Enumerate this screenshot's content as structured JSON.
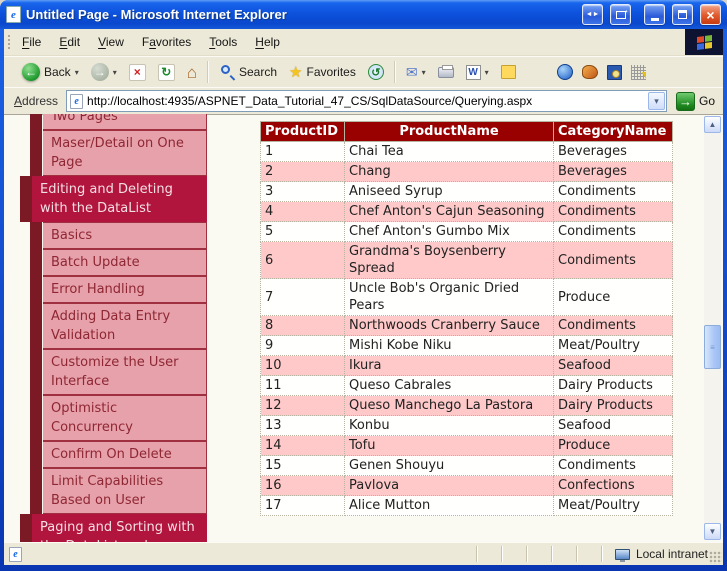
{
  "window": {
    "title": "Untitled Page - Microsoft Internet Explorer"
  },
  "menu": {
    "items": [
      {
        "label": "File",
        "u": 0
      },
      {
        "label": "Edit",
        "u": 0
      },
      {
        "label": "View",
        "u": 0
      },
      {
        "label": "Favorites",
        "u": 1
      },
      {
        "label": "Tools",
        "u": 0
      },
      {
        "label": "Help",
        "u": 0
      }
    ]
  },
  "toolbar": {
    "back_label": "Back",
    "search_label": "Search",
    "favorites_label": "Favorites"
  },
  "address": {
    "label": {
      "label": "Address",
      "u": 0
    },
    "url": "http://localhost:4935/ASPNET_Data_Tutorial_47_CS/SqlDataSource/Querying.aspx",
    "go_label": "Go"
  },
  "sidebar": {
    "items": [
      {
        "id": "two-pages",
        "label": "Two Pages",
        "type": "sub"
      },
      {
        "id": "master-detail-on-one-page",
        "label": "Maser/Detail on One Page",
        "type": "sub"
      },
      {
        "id": "editing-and-deleting-with-the-datalist",
        "label": "Editing and Deleting with the DataList",
        "type": "section"
      },
      {
        "id": "basics",
        "label": "Basics",
        "type": "sub"
      },
      {
        "id": "batch-update",
        "label": "Batch Update",
        "type": "sub"
      },
      {
        "id": "error-handling",
        "label": "Error Handling",
        "type": "sub"
      },
      {
        "id": "adding-data-entry-validation",
        "label": "Adding Data Entry Validation",
        "type": "sub"
      },
      {
        "id": "customize-the-user-interface",
        "label": "Customize the User Interface",
        "type": "sub"
      },
      {
        "id": "optimistic-concurrency",
        "label": "Optimistic Concurrency",
        "type": "sub"
      },
      {
        "id": "confirm-on-delete",
        "label": "Confirm On Delete",
        "type": "sub"
      },
      {
        "id": "limit-capabilities-based-on-user",
        "label": "Limit Capabilities Based on User",
        "type": "sub"
      },
      {
        "id": "paging-and-sorting",
        "label": "Paging and Sorting with the DataList and",
        "type": "section"
      }
    ]
  },
  "table": {
    "headers": [
      "ProductID",
      "ProductName",
      "CategoryName"
    ],
    "rows": [
      [
        "1",
        "Chai Tea",
        "Beverages"
      ],
      [
        "2",
        "Chang",
        "Beverages"
      ],
      [
        "3",
        "Aniseed Syrup",
        "Condiments"
      ],
      [
        "4",
        "Chef Anton's Cajun Seasoning",
        "Condiments"
      ],
      [
        "5",
        "Chef Anton's Gumbo Mix",
        "Condiments"
      ],
      [
        "6",
        "Grandma's Boysenberry Spread",
        "Condiments"
      ],
      [
        "7",
        "Uncle Bob's Organic Dried Pears",
        "Produce"
      ],
      [
        "8",
        "Northwoods Cranberry Sauce",
        "Condiments"
      ],
      [
        "9",
        "Mishi Kobe Niku",
        "Meat/Poultry"
      ],
      [
        "10",
        "Ikura",
        "Seafood"
      ],
      [
        "11",
        "Queso Cabrales",
        "Dairy Products"
      ],
      [
        "12",
        "Queso Manchego La Pastora",
        "Dairy Products"
      ],
      [
        "13",
        "Konbu",
        "Seafood"
      ],
      [
        "14",
        "Tofu",
        "Produce"
      ],
      [
        "15",
        "Genen Shouyu",
        "Condiments"
      ],
      [
        "16",
        "Pavlova",
        "Confections"
      ],
      [
        "17",
        "Alice Mutton",
        "Meat/Poultry"
      ]
    ]
  },
  "status": {
    "zone_label": "Local intranet"
  },
  "icons": {
    "back-icon": "←",
    "forward-icon": "→",
    "stop-icon": "×",
    "refresh-icon": "↻",
    "home-icon": "⌂",
    "favorites-icon": "★",
    "history-icon": "↺",
    "mail-icon": "✉",
    "word-icon": "W",
    "dropdown-icon": "▾",
    "go-icon": "→",
    "scroll-up-icon": "▲",
    "scroll-down-icon": "▼",
    "thumb-grip-icon": "≡",
    "window-nav-pair-icon": "◄►",
    "close-icon": "×",
    "ie-logo-icon": "e"
  },
  "colors": {
    "luna_blue": "#0d52dd",
    "chrome_beige": "#ece9d8",
    "sidebar_pink": "#e7a1ab",
    "sidebar_maroon": "#7b1a24",
    "sidebar_crimson": "#b1153d",
    "table_header_red": "#990000",
    "table_alt_pink": "#ffc9c9"
  }
}
